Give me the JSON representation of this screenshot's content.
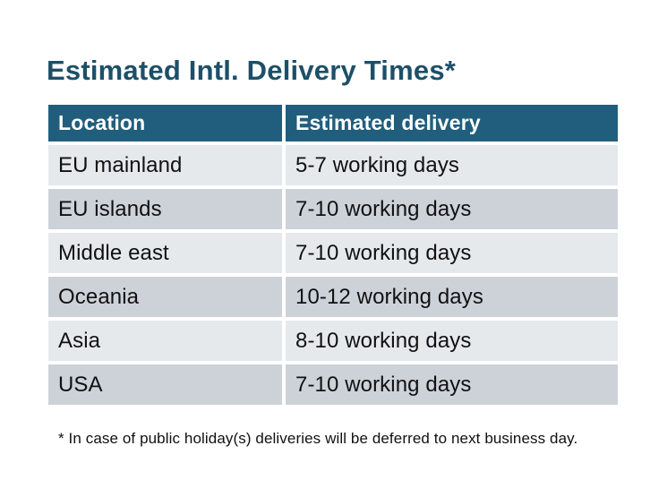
{
  "title": "Estimated Intl. Delivery Times*",
  "table": {
    "headers": {
      "location": "Location",
      "delivery": "Estimated delivery"
    },
    "rows": [
      {
        "location": "EU mainland",
        "delivery": "5-7 working days"
      },
      {
        "location": "EU islands",
        "delivery": "7-10 working days"
      },
      {
        "location": "Middle east",
        "delivery": "7-10 working days"
      },
      {
        "location": "Oceania",
        "delivery": "10-12 working days"
      },
      {
        "location": "Asia",
        "delivery": "8-10 working days"
      },
      {
        "location": "USA",
        "delivery": "7-10 working days"
      }
    ]
  },
  "footnote": "* In case of public holiday(s) deliveries will be deferred to next business day.",
  "colors": {
    "background": "#FFFFFF",
    "title_text": "#1D5068",
    "header_bg": "#215E7D",
    "header_text": "#FFFFFF",
    "row_odd_bg": "#CDD2D9",
    "row_even_bg": "#E6E9EC",
    "body_text": "#111111"
  },
  "chart_data": {
    "type": "table",
    "title": "Estimated Intl. Delivery Times*",
    "columns": [
      "Location",
      "Estimated delivery"
    ],
    "rows": [
      [
        "EU mainland",
        "5-7 working days"
      ],
      [
        "EU islands",
        "7-10 working days"
      ],
      [
        "Middle east",
        "7-10 working days"
      ],
      [
        "Oceania",
        "10-12 working days"
      ],
      [
        "Asia",
        "8-10 working days"
      ],
      [
        "USA",
        "7-10 working days"
      ]
    ],
    "footnote": "* In case of public holiday(s) deliveries will be deferred to next business day."
  }
}
